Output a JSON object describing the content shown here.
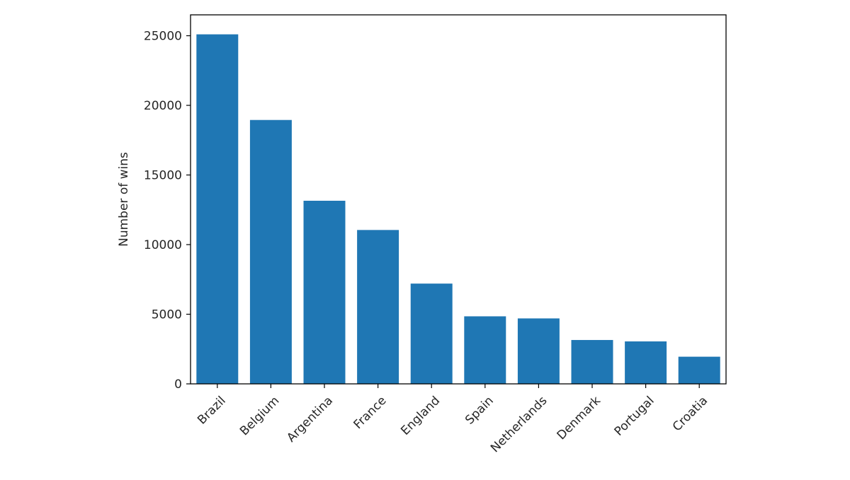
{
  "chart_data": {
    "type": "bar",
    "title": "",
    "xlabel": "",
    "ylabel": "Number of wins",
    "categories": [
      "Brazil",
      "Belgium",
      "Argentina",
      "France",
      "England",
      "Spain",
      "Netherlands",
      "Denmark",
      "Portugal",
      "Croatia"
    ],
    "values": [
      25100,
      18950,
      13150,
      11050,
      7200,
      4850,
      4700,
      3150,
      3050,
      1950
    ],
    "ylim": [
      0,
      26500
    ],
    "yticks": [
      0,
      5000,
      10000,
      15000,
      20000,
      25000
    ],
    "ytick_labels": [
      "0",
      "5000",
      "10000",
      "15000",
      "20000",
      "25000"
    ],
    "grid": false,
    "bar_color": "#1f77b4"
  }
}
